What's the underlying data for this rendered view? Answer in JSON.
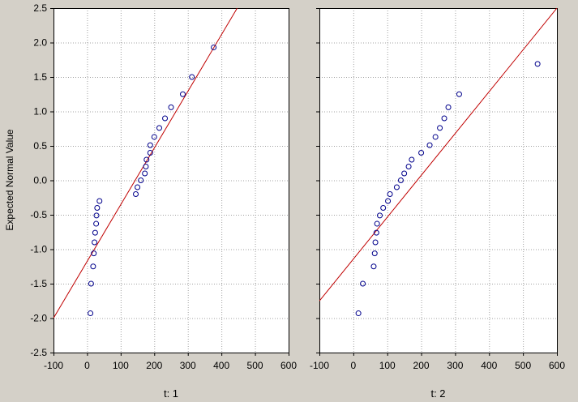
{
  "colors": {
    "background": "#d4d0c8",
    "plot_background": "#ffffff",
    "grid": "#a0a0a0",
    "points": "#00008b",
    "fit_line": "#c00000"
  },
  "chart_data": {
    "type": "scatter",
    "title": "",
    "ylabel": "Expected Normal Value",
    "ylim": [
      -2.5,
      2.5
    ],
    "yticks": [
      -2.5,
      -2.0,
      -1.5,
      -1.0,
      -0.5,
      0.0,
      0.5,
      1.0,
      1.5,
      2.0,
      2.5
    ],
    "xlim": [
      -100,
      600
    ],
    "xticks": [
      -100,
      0,
      100,
      200,
      300,
      400,
      500,
      600
    ],
    "grid": true,
    "panels": [
      {
        "xlabel": "t: 1",
        "points": [
          [
            10,
            -1.93
          ],
          [
            12,
            -1.5
          ],
          [
            18,
            -1.25
          ],
          [
            20,
            -1.06
          ],
          [
            22,
            -0.9
          ],
          [
            24,
            -0.76
          ],
          [
            27,
            -0.63
          ],
          [
            28,
            -0.51
          ],
          [
            30,
            -0.4
          ],
          [
            37,
            -0.3
          ],
          [
            145,
            -0.2
          ],
          [
            150,
            -0.1
          ],
          [
            160,
            0.0
          ],
          [
            172,
            0.1
          ],
          [
            175,
            0.2
          ],
          [
            177,
            0.3
          ],
          [
            188,
            0.4
          ],
          [
            188,
            0.51
          ],
          [
            200,
            0.63
          ],
          [
            215,
            0.76
          ],
          [
            232,
            0.9
          ],
          [
            250,
            1.06
          ],
          [
            285,
            1.25
          ],
          [
            312,
            1.5
          ],
          [
            377,
            1.93
          ]
        ],
        "fit_line": [
          [
            -100,
            -2.0
          ],
          [
            447,
            2.5
          ]
        ]
      },
      {
        "xlabel": "t: 2",
        "points": [
          [
            15,
            -1.93
          ],
          [
            28,
            -1.5
          ],
          [
            60,
            -1.25
          ],
          [
            63,
            -1.06
          ],
          [
            65,
            -0.9
          ],
          [
            68,
            -0.76
          ],
          [
            70,
            -0.63
          ],
          [
            78,
            -0.51
          ],
          [
            88,
            -0.4
          ],
          [
            102,
            -0.3
          ],
          [
            108,
            -0.2
          ],
          [
            128,
            -0.1
          ],
          [
            140,
            0.0
          ],
          [
            150,
            0.1
          ],
          [
            163,
            0.2
          ],
          [
            172,
            0.3
          ],
          [
            200,
            0.4
          ],
          [
            225,
            0.51
          ],
          [
            242,
            0.63
          ],
          [
            255,
            0.76
          ],
          [
            268,
            0.9
          ],
          [
            280,
            1.06
          ],
          [
            312,
            1.25
          ],
          [
            543,
            1.69
          ]
        ],
        "fit_line": [
          [
            -100,
            -1.75
          ],
          [
            600,
            2.5
          ]
        ]
      }
    ]
  }
}
